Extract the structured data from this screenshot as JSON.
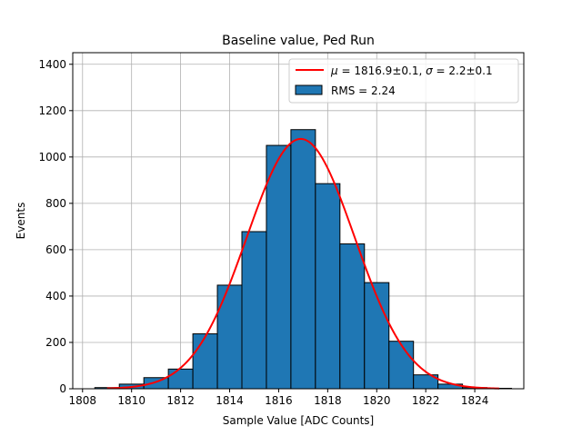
{
  "chart_data": {
    "type": "bar",
    "title": "Baseline value, Ped Run",
    "xlabel": "Sample Value [ADC Counts]",
    "ylabel": "Events",
    "xlim": [
      1807.6,
      1826.0
    ],
    "ylim": [
      0,
      1450
    ],
    "grid": true,
    "legend_position": "top-right",
    "histogram": {
      "bin_edges": [
        1808.5,
        1809.5,
        1810.5,
        1811.5,
        1812.5,
        1813.5,
        1814.5,
        1815.5,
        1816.5,
        1817.5,
        1818.5,
        1819.5,
        1820.5,
        1821.5,
        1822.5,
        1823.5,
        1824.5,
        1825.5
      ],
      "values": [
        5,
        20,
        48,
        85,
        237,
        447,
        678,
        1050,
        1118,
        885,
        625,
        458,
        205,
        60,
        20,
        5,
        2
      ],
      "name": "RMS = 2.24",
      "color": "#1f77b4",
      "edgecolor": "#000000"
    },
    "fit": {
      "name": "$\\mu = 1816.9{\\pm}0.1$, $\\sigma = 2.2{\\pm}0.1$",
      "color": "#ff0000",
      "mu": 1816.9,
      "sigma": 2.2,
      "amplitude": 1078,
      "x_range": [
        1809.0,
        1825.0
      ]
    },
    "xticks": [
      1808,
      1810,
      1812,
      1814,
      1816,
      1818,
      1820,
      1822,
      1824
    ],
    "yticks": [
      0,
      200,
      400,
      600,
      800,
      1000,
      1200,
      1400
    ]
  }
}
